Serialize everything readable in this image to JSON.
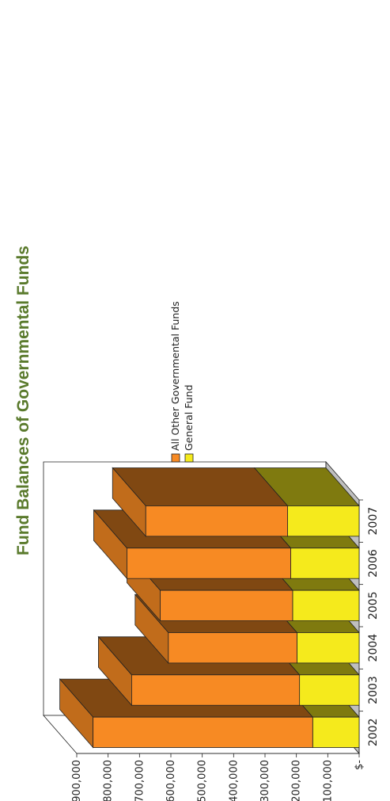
{
  "chart_data": {
    "type": "bar",
    "stacked": true,
    "three_d": true,
    "title": "Fund Balances of Governmental Funds",
    "categories": [
      "2002",
      "2003",
      "2004",
      "2005",
      "2006",
      "2007"
    ],
    "series": [
      {
        "name": "General Fund",
        "values": [
          148000,
          190000,
          198000,
          212000,
          218000,
          228000
        ],
        "color": "#f5ea1c"
      },
      {
        "name": "All Other Governmental Funds",
        "values": [
          700000,
          535000,
          410000,
          422000,
          522000,
          452000
        ],
        "color": "#f78a23"
      }
    ],
    "ylim": [
      0,
      900000
    ],
    "yticks": [
      0,
      100000,
      200000,
      300000,
      400000,
      500000,
      600000,
      700000,
      800000,
      900000
    ],
    "ytick_labels": [
      "$-",
      "$100,000",
      "$200,000",
      "$300,000",
      "$400,000",
      "$500,000",
      "$600,000",
      "$700,000",
      "$800,000",
      "$900,000"
    ],
    "legend_position": "right",
    "grid": false
  }
}
